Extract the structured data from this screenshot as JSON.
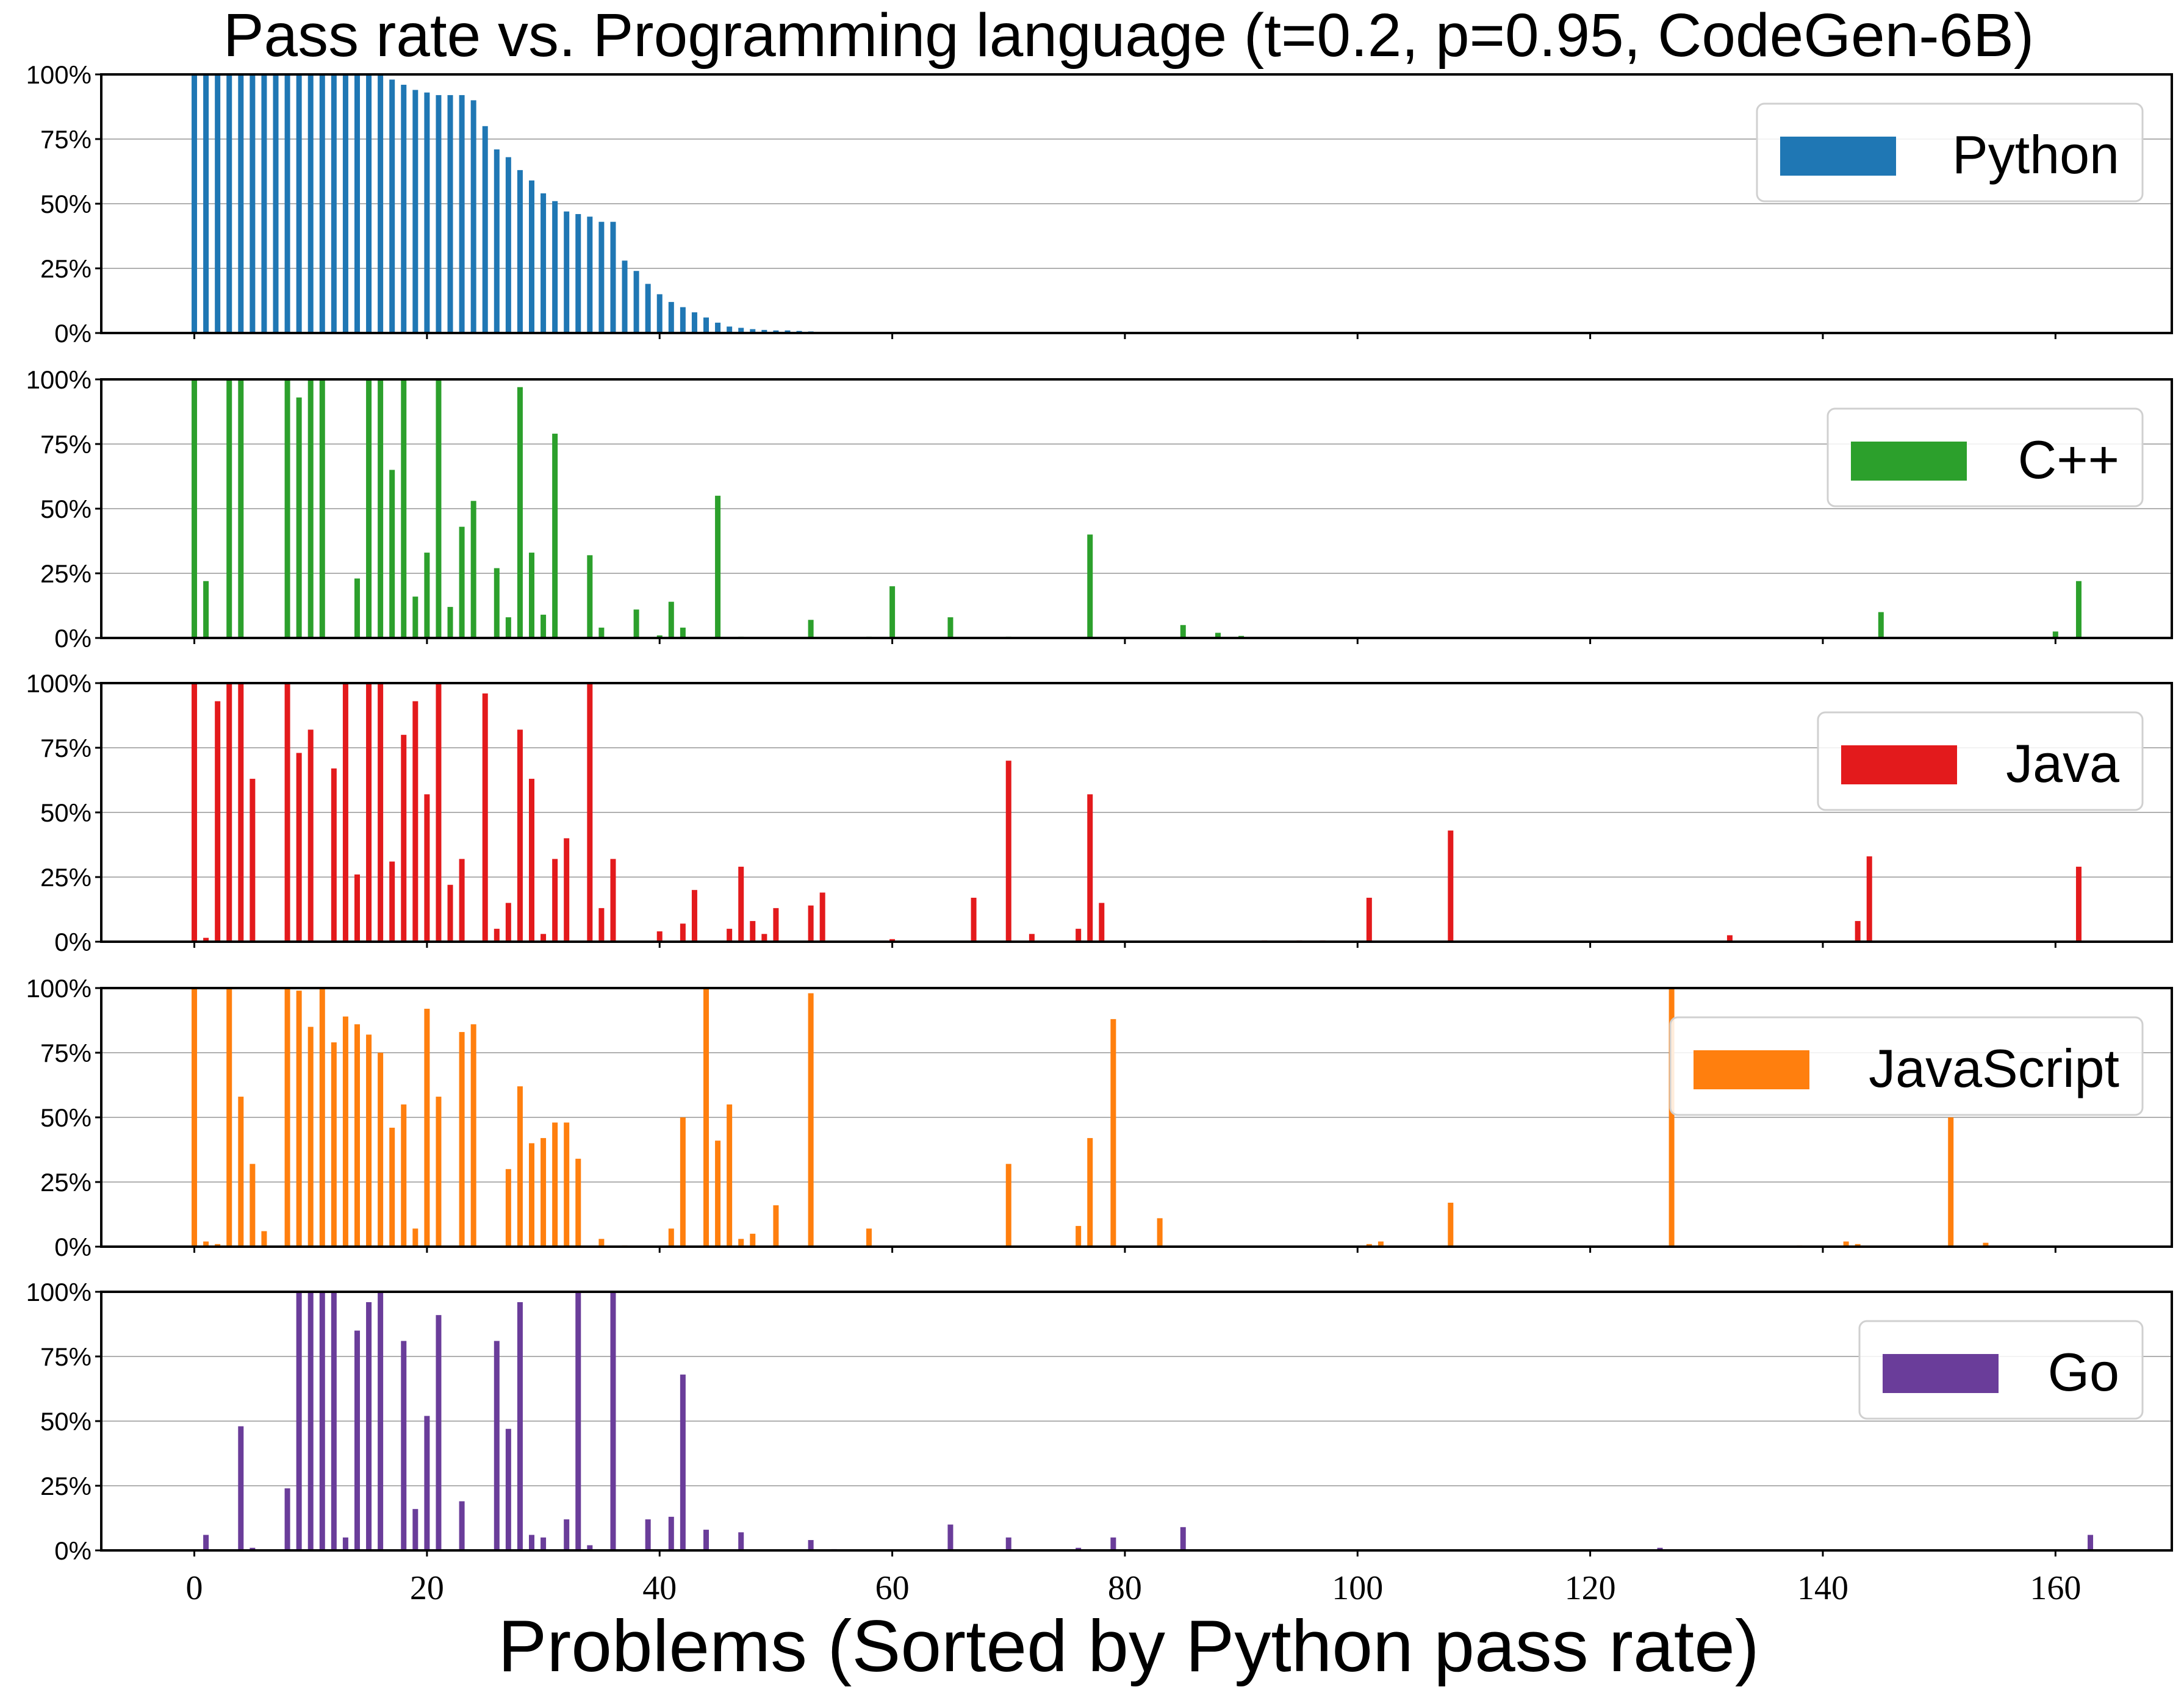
{
  "chart_data": {
    "type": "bar",
    "title": "Pass rate vs. Programming language (t=0.2, p=0.95, CodeGen-6B)",
    "xlabel": "Problems (Sorted by Python pass rate)",
    "ylabel": "",
    "xlim": [
      -8,
      170
    ],
    "ylim": [
      0,
      100
    ],
    "x_ticks": [
      0,
      20,
      40,
      60,
      80,
      100,
      120,
      140,
      160
    ],
    "x_tick_labels": [
      "0",
      "20",
      "40",
      "60",
      "80",
      "100",
      "120",
      "140",
      "160"
    ],
    "y_ticks": [
      0,
      25,
      50,
      75,
      100
    ],
    "y_tick_labels": [
      "0%",
      "25%",
      "50%",
      "75%",
      "100%"
    ],
    "grid": "horizontal",
    "legend_position": "upper-right",
    "series": [
      {
        "name": "Python",
        "color": "#1f77b4",
        "points": [
          [
            0,
            100
          ],
          [
            1,
            100
          ],
          [
            2,
            100
          ],
          [
            3,
            100
          ],
          [
            4,
            100
          ],
          [
            5,
            100
          ],
          [
            6,
            100
          ],
          [
            7,
            100
          ],
          [
            8,
            100
          ],
          [
            9,
            100
          ],
          [
            10,
            100
          ],
          [
            11,
            100
          ],
          [
            12,
            100
          ],
          [
            13,
            100
          ],
          [
            14,
            100
          ],
          [
            15,
            100
          ],
          [
            16,
            100
          ],
          [
            17,
            98
          ],
          [
            18,
            96
          ],
          [
            19,
            94
          ],
          [
            20,
            93
          ],
          [
            21,
            92
          ],
          [
            22,
            92
          ],
          [
            23,
            92
          ],
          [
            24,
            90
          ],
          [
            25,
            80
          ],
          [
            26,
            71
          ],
          [
            27,
            68
          ],
          [
            28,
            63
          ],
          [
            29,
            59
          ],
          [
            30,
            54
          ],
          [
            31,
            51
          ],
          [
            32,
            47
          ],
          [
            33,
            46
          ],
          [
            34,
            45
          ],
          [
            35,
            43
          ],
          [
            36,
            43
          ],
          [
            37,
            28
          ],
          [
            38,
            24
          ],
          [
            39,
            19
          ],
          [
            40,
            15
          ],
          [
            41,
            12
          ],
          [
            42,
            10
          ],
          [
            43,
            8
          ],
          [
            44,
            6
          ],
          [
            45,
            4
          ],
          [
            46,
            2.5
          ],
          [
            47,
            2
          ],
          [
            48,
            1.5
          ],
          [
            49,
            1.2
          ],
          [
            50,
            1
          ],
          [
            51,
            1
          ],
          [
            52,
            0.8
          ],
          [
            53,
            0.6
          ],
          [
            54,
            0.4
          ],
          [
            55,
            0.3
          ]
        ]
      },
      {
        "name": "C++",
        "color": "#2ca02c",
        "points": [
          [
            0,
            100
          ],
          [
            1,
            22
          ],
          [
            3,
            100
          ],
          [
            4,
            100
          ],
          [
            8,
            100
          ],
          [
            9,
            93
          ],
          [
            10,
            100
          ],
          [
            11,
            100
          ],
          [
            14,
            23
          ],
          [
            15,
            100
          ],
          [
            16,
            100
          ],
          [
            17,
            65
          ],
          [
            18,
            100
          ],
          [
            19,
            16
          ],
          [
            20,
            33
          ],
          [
            21,
            100
          ],
          [
            22,
            12
          ],
          [
            23,
            43
          ],
          [
            24,
            53
          ],
          [
            26,
            27
          ],
          [
            27,
            8
          ],
          [
            28,
            97
          ],
          [
            29,
            33
          ],
          [
            30,
            9
          ],
          [
            31,
            79
          ],
          [
            34,
            32
          ],
          [
            35,
            4
          ],
          [
            38,
            11
          ],
          [
            40,
            1
          ],
          [
            41,
            14
          ],
          [
            42,
            4
          ],
          [
            45,
            55
          ],
          [
            47,
            0.5
          ],
          [
            53,
            7
          ],
          [
            58,
            0.5
          ],
          [
            60,
            20
          ],
          [
            65,
            8
          ],
          [
            70,
            0.5
          ],
          [
            77,
            40
          ],
          [
            85,
            5
          ],
          [
            88,
            2
          ],
          [
            90,
            0.8
          ],
          [
            102,
            0.4
          ],
          [
            145,
            10
          ],
          [
            160,
            2.5
          ],
          [
            162,
            22
          ]
        ]
      },
      {
        "name": "Java",
        "color": "#e31a1c",
        "points": [
          [
            0,
            100
          ],
          [
            1,
            1.5
          ],
          [
            2,
            93
          ],
          [
            3,
            100
          ],
          [
            4,
            100
          ],
          [
            5,
            63
          ],
          [
            8,
            100
          ],
          [
            9,
            73
          ],
          [
            10,
            82
          ],
          [
            12,
            67
          ],
          [
            13,
            100
          ],
          [
            14,
            26
          ],
          [
            15,
            100
          ],
          [
            16,
            100
          ],
          [
            17,
            31
          ],
          [
            18,
            80
          ],
          [
            19,
            93
          ],
          [
            20,
            57
          ],
          [
            21,
            100
          ],
          [
            22,
            22
          ],
          [
            23,
            32
          ],
          [
            25,
            96
          ],
          [
            26,
            5
          ],
          [
            27,
            15
          ],
          [
            28,
            82
          ],
          [
            29,
            63
          ],
          [
            30,
            3
          ],
          [
            31,
            32
          ],
          [
            32,
            40
          ],
          [
            34,
            100
          ],
          [
            35,
            13
          ],
          [
            36,
            32
          ],
          [
            40,
            4
          ],
          [
            42,
            7
          ],
          [
            43,
            20
          ],
          [
            46,
            5
          ],
          [
            47,
            29
          ],
          [
            48,
            8
          ],
          [
            49,
            3
          ],
          [
            50,
            13
          ],
          [
            53,
            14
          ],
          [
            54,
            19
          ],
          [
            60,
            1
          ],
          [
            67,
            17
          ],
          [
            70,
            70
          ],
          [
            72,
            3
          ],
          [
            76,
            5
          ],
          [
            77,
            57
          ],
          [
            78,
            15
          ],
          [
            92,
            0.5
          ],
          [
            95,
            0.5
          ],
          [
            97,
            0.5
          ],
          [
            101,
            17
          ],
          [
            108,
            43
          ],
          [
            132,
            2.5
          ],
          [
            143,
            8
          ],
          [
            144,
            33
          ],
          [
            162,
            29
          ]
        ]
      },
      {
        "name": "JavaScript",
        "color": "#ff7f0e",
        "points": [
          [
            0,
            100
          ],
          [
            1,
            2
          ],
          [
            2,
            1
          ],
          [
            3,
            100
          ],
          [
            4,
            58
          ],
          [
            5,
            32
          ],
          [
            6,
            6
          ],
          [
            8,
            100
          ],
          [
            9,
            99
          ],
          [
            10,
            85
          ],
          [
            11,
            100
          ],
          [
            12,
            79
          ],
          [
            13,
            89
          ],
          [
            14,
            86
          ],
          [
            15,
            82
          ],
          [
            16,
            75
          ],
          [
            17,
            46
          ],
          [
            18,
            55
          ],
          [
            19,
            7
          ],
          [
            20,
            92
          ],
          [
            21,
            58
          ],
          [
            23,
            83
          ],
          [
            24,
            86
          ],
          [
            27,
            30
          ],
          [
            28,
            62
          ],
          [
            29,
            40
          ],
          [
            30,
            42
          ],
          [
            31,
            48
          ],
          [
            32,
            48
          ],
          [
            33,
            34
          ],
          [
            35,
            3
          ],
          [
            37,
            0.5
          ],
          [
            41,
            7
          ],
          [
            42,
            50
          ],
          [
            44,
            100
          ],
          [
            45,
            41
          ],
          [
            46,
            55
          ],
          [
            47,
            3
          ],
          [
            48,
            5
          ],
          [
            50,
            16
          ],
          [
            53,
            98
          ],
          [
            58,
            7
          ],
          [
            70,
            32
          ],
          [
            76,
            8
          ],
          [
            77,
            42
          ],
          [
            79,
            88
          ],
          [
            83,
            11
          ],
          [
            101,
            1
          ],
          [
            102,
            2
          ],
          [
            108,
            17
          ],
          [
            127,
            100
          ],
          [
            138,
            0.5
          ],
          [
            142,
            2
          ],
          [
            143,
            1
          ],
          [
            151,
            50
          ],
          [
            154,
            1.5
          ]
        ]
      },
      {
        "name": "Go",
        "color": "#6a3d9a",
        "points": [
          [
            1,
            6
          ],
          [
            4,
            48
          ],
          [
            5,
            1
          ],
          [
            8,
            24
          ],
          [
            9,
            100
          ],
          [
            10,
            100
          ],
          [
            11,
            100
          ],
          [
            12,
            100
          ],
          [
            13,
            5
          ],
          [
            14,
            85
          ],
          [
            15,
            96
          ],
          [
            16,
            100
          ],
          [
            18,
            81
          ],
          [
            19,
            16
          ],
          [
            20,
            52
          ],
          [
            21,
            91
          ],
          [
            23,
            19
          ],
          [
            26,
            81
          ],
          [
            27,
            47
          ],
          [
            28,
            96
          ],
          [
            29,
            6
          ],
          [
            30,
            5
          ],
          [
            32,
            12
          ],
          [
            33,
            100
          ],
          [
            34,
            2
          ],
          [
            36,
            100
          ],
          [
            39,
            12
          ],
          [
            41,
            13
          ],
          [
            42,
            68
          ],
          [
            44,
            8
          ],
          [
            47,
            7
          ],
          [
            53,
            4
          ],
          [
            55,
            0.5
          ],
          [
            65,
            10
          ],
          [
            70,
            5
          ],
          [
            76,
            1
          ],
          [
            79,
            5
          ],
          [
            85,
            9
          ],
          [
            126,
            1
          ],
          [
            163,
            6
          ]
        ]
      }
    ]
  }
}
